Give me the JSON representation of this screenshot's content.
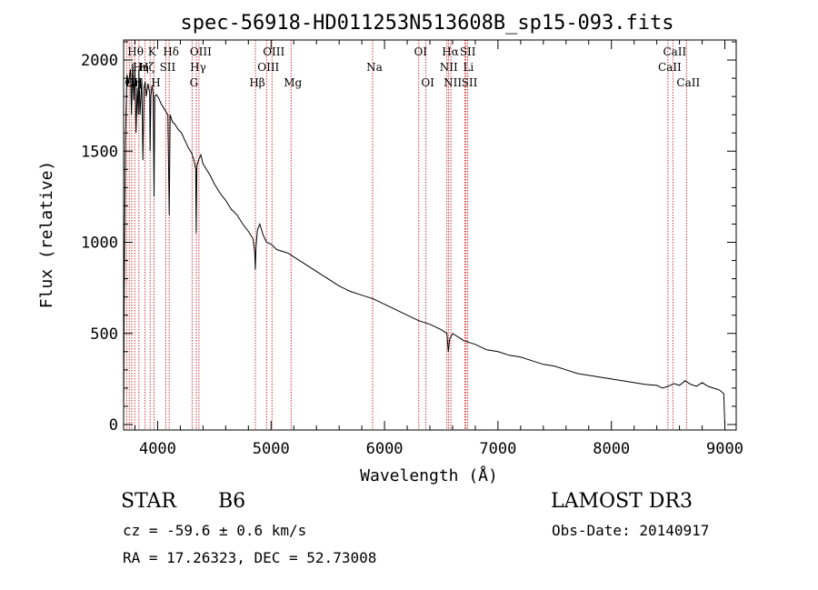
{
  "chart_data": {
    "type": "line",
    "title": "spec-56918-HD011253N513608B_sp15-093.fits",
    "xlabel": "Wavelength (Å)",
    "ylabel": "Flux (relative)",
    "xlim": [
      3700,
      9100
    ],
    "ylim": [
      -30,
      2110
    ],
    "xticks": [
      4000,
      5000,
      6000,
      7000,
      8000,
      9000
    ],
    "yticks": [
      0,
      500,
      1000,
      1500,
      2000
    ],
    "series": [
      {
        "name": "spectrum",
        "x": [
          3700,
          3705,
          3715,
          3730,
          3745,
          3760,
          3770,
          3780,
          3790,
          3800,
          3810,
          3820,
          3830,
          3835,
          3845,
          3860,
          3870,
          3880,
          3890,
          3900,
          3915,
          3930,
          3933,
          3940,
          3950,
          3960,
          3968,
          3975,
          3990,
          4010,
          4030,
          4050,
          4070,
          4090,
          4102,
          4110,
          4130,
          4150,
          4180,
          4210,
          4240,
          4270,
          4300,
          4320,
          4335,
          4340,
          4346,
          4360,
          4380,
          4400,
          4430,
          4460,
          4500,
          4550,
          4600,
          4650,
          4700,
          4750,
          4800,
          4840,
          4855,
          4861,
          4867,
          4880,
          4900,
          4930,
          4960,
          5000,
          5050,
          5100,
          5150,
          5200,
          5300,
          5400,
          5500,
          5600,
          5700,
          5800,
          5900,
          6000,
          6100,
          6200,
          6300,
          6400,
          6500,
          6550,
          6563,
          6575,
          6600,
          6700,
          6800,
          6900,
          7000,
          7100,
          7200,
          7300,
          7400,
          7500,
          7600,
          7700,
          7800,
          7900,
          8000,
          8100,
          8200,
          8300,
          8400,
          8450,
          8500,
          8550,
          8600,
          8650,
          8700,
          8750,
          8800,
          8850,
          8900,
          8950,
          8990,
          9000
        ],
        "values": [
          0,
          650,
          1550,
          1920,
          1870,
          1950,
          1700,
          1980,
          1780,
          1960,
          1600,
          1850,
          1700,
          1950,
          1700,
          1900,
          1450,
          1850,
          1880,
          1800,
          1870,
          1820,
          1500,
          1800,
          1860,
          1820,
          1250,
          1800,
          1810,
          1790,
          1760,
          1740,
          1720,
          1700,
          1150,
          1700,
          1660,
          1650,
          1620,
          1600,
          1560,
          1520,
          1490,
          1450,
          1400,
          1050,
          1420,
          1450,
          1480,
          1430,
          1400,
          1370,
          1320,
          1270,
          1230,
          1180,
          1150,
          1100,
          1060,
          1020,
          950,
          850,
          980,
          1070,
          1100,
          1040,
          1000,
          990,
          960,
          950,
          940,
          920,
          880,
          840,
          800,
          760,
          730,
          710,
          690,
          660,
          630,
          600,
          570,
          550,
          520,
          500,
          400,
          470,
          500,
          460,
          440,
          410,
          400,
          380,
          370,
          350,
          330,
          320,
          300,
          280,
          270,
          260,
          250,
          240,
          230,
          220,
          215,
          200,
          210,
          225,
          215,
          240,
          220,
          210,
          230,
          210,
          200,
          190,
          170,
          0
        ]
      }
    ],
    "lines": [
      {
        "wave": 3727,
        "label": "OII",
        "row": 2,
        "side": "right"
      },
      {
        "wave": 3750,
        "label": "Hθ",
        "row": 0,
        "side": "right"
      },
      {
        "wave": 3771,
        "label": "Hη",
        "row": 2,
        "side": "left"
      },
      {
        "wave": 3798,
        "label": "Hι",
        "row": 1,
        "side": "right"
      },
      {
        "wave": 3835,
        "label": "Hη",
        "row": 1,
        "side": "left"
      },
      {
        "wave": 3889,
        "label": "Hζ",
        "row": 1,
        "side": "left"
      },
      {
        "wave": 3934,
        "label": "K",
        "row": 0,
        "side": "left"
      },
      {
        "wave": 3968,
        "label": "H",
        "row": 2,
        "side": "left"
      },
      {
        "wave": 4072,
        "label": "SII",
        "row": 1,
        "side": "left"
      },
      {
        "wave": 4102,
        "label": "Hδ",
        "row": 0,
        "side": "left"
      },
      {
        "wave": 4304,
        "label": "G",
        "row": 2,
        "side": "left"
      },
      {
        "wave": 4341,
        "label": "Hγ",
        "row": 1,
        "side": "left"
      },
      {
        "wave": 4364,
        "label": "OIII",
        "row": 0,
        "side": "left"
      },
      {
        "wave": 4862,
        "label": "Hβ",
        "row": 2,
        "side": "left"
      },
      {
        "wave": 4960,
        "label": "OIII",
        "row": 1,
        "side": "left"
      },
      {
        "wave": 5008,
        "label": "OIII",
        "row": 0,
        "side": "left"
      },
      {
        "wave": 5176,
        "label": "Mg",
        "row": 2,
        "side": "left"
      },
      {
        "wave": 5895,
        "label": "Na",
        "row": 1,
        "side": "left"
      },
      {
        "wave": 6302,
        "label": "OI",
        "row": 0,
        "side": "left"
      },
      {
        "wave": 6365,
        "label": "OI",
        "row": 2,
        "side": "left"
      },
      {
        "wave": 6550,
        "label": "NII",
        "row": 1,
        "side": "left"
      },
      {
        "wave": 6565,
        "label": "Hα",
        "row": 0,
        "side": "left"
      },
      {
        "wave": 6585,
        "label": "NII",
        "row": 2,
        "side": "left"
      },
      {
        "wave": 6708,
        "label": "Li",
        "row": 1,
        "side": "right"
      },
      {
        "wave": 6718,
        "label": "SII",
        "row": 0,
        "side": "left"
      },
      {
        "wave": 6733,
        "label": "SII",
        "row": 2,
        "side": "left"
      },
      {
        "wave": 8498,
        "label": "CaII",
        "row": 1,
        "side": "left"
      },
      {
        "wave": 8542,
        "label": "CaII",
        "row": 0,
        "side": "left"
      },
      {
        "wave": 8662,
        "label": "CaII",
        "row": 2,
        "side": "left"
      }
    ]
  },
  "info": {
    "class_label": "STAR",
    "subclass": "B6",
    "survey": "LAMOST DR3",
    "cz": "cz = -59.6 ± 0.6 km/s",
    "obs_date": "Obs-Date: 20140917",
    "coords": "RA =  17.26323, DEC =  52.73008"
  },
  "colors": {
    "line_marker": "#cc3333",
    "spectrum": "#000000",
    "axis": "#000000"
  }
}
